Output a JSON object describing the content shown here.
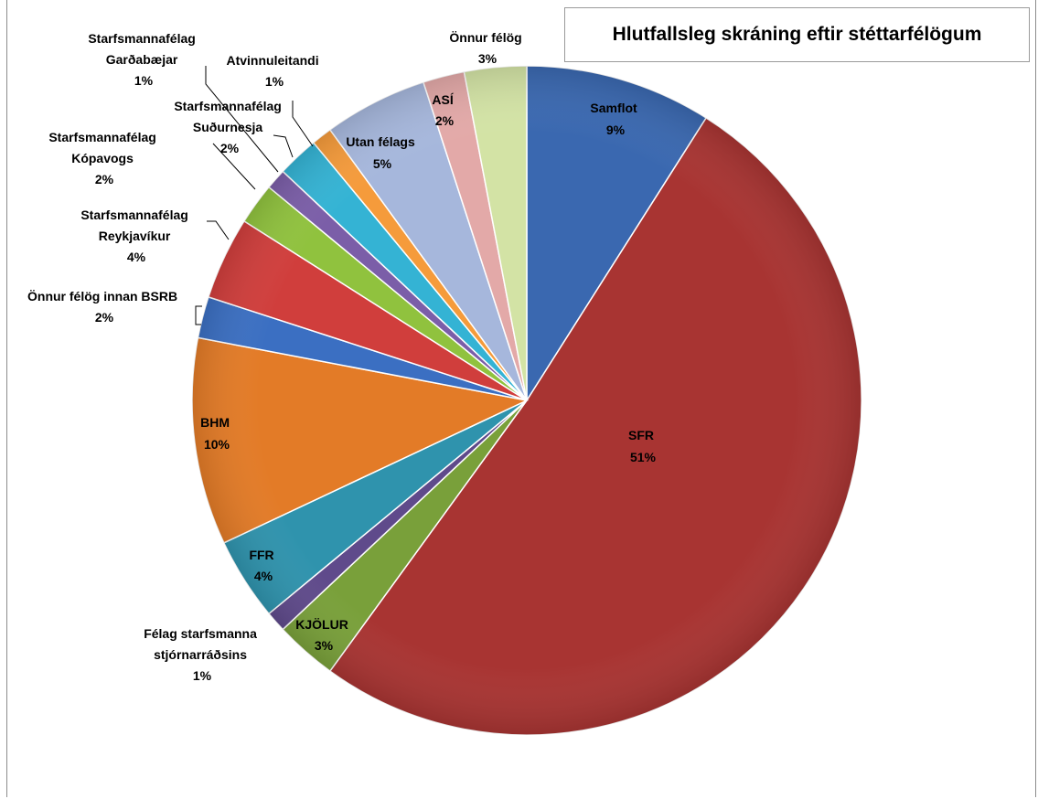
{
  "chart_data": {
    "type": "pie",
    "title": "Hlutfallsleg skráning eftir stéttarfélögum",
    "slices": [
      {
        "name": "Samflot",
        "value": 9,
        "label_value": "9%",
        "color": "#3a68b0"
      },
      {
        "name": "SFR",
        "value": 51,
        "label_value": "51%",
        "color": "#a83432"
      },
      {
        "name": "KJÖLUR",
        "value": 3,
        "label_value": "3%",
        "color": "#79a03a"
      },
      {
        "name": "Félag starfsmanna stjórnarráðsins",
        "value": 1,
        "label_value": "1%",
        "color": "#5f4a8b"
      },
      {
        "name": "FFR",
        "value": 4,
        "label_value": "4%",
        "color": "#2f93ad"
      },
      {
        "name": "BHM",
        "value": 10,
        "label_value": "10%",
        "color": "#e37b27"
      },
      {
        "name": "Önnur félög innan BSRB",
        "value": 2,
        "label_value": "2%",
        "color": "#3b6fc2"
      },
      {
        "name": "Starfsmannafélag Reykjavíkur",
        "value": 4,
        "label_value": "4%",
        "color": "#d03e3c"
      },
      {
        "name": "Starfsmannafélag Kópavogs",
        "value": 2,
        "label_value": "2%",
        "color": "#90c23e"
      },
      {
        "name": "Starfsmannafélag Garðabæjar",
        "value": 1,
        "label_value": "1%",
        "color": "#7b5ea8"
      },
      {
        "name": "Starfsmannafélag Suðurnesja",
        "value": 2,
        "label_value": "2%",
        "color": "#34b3d4"
      },
      {
        "name": "Atvinnuleitandi",
        "value": 1,
        "label_value": "1%",
        "color": "#f59b3b"
      },
      {
        "name": "Utan félags",
        "value": 5,
        "label_value": "5%",
        "color": "#a6b7dc"
      },
      {
        "name": "ASÍ",
        "value": 2,
        "label_value": "2%",
        "color": "#e3a9a8"
      },
      {
        "name": "Önnur félög",
        "value": 3,
        "label_value": "3%",
        "color": "#d3e3a5"
      }
    ]
  },
  "labels": {
    "samflot": {
      "name": "Samflot",
      "pct": "9%"
    },
    "sfr": {
      "name": "SFR",
      "pct": "51%"
    },
    "kjolur": {
      "name": "KJÖLUR",
      "pct": "3%"
    },
    "fss": {
      "line1": "Félag starfsmanna",
      "line2": "stjórnarráðsins",
      "pct": "1%"
    },
    "ffr": {
      "name": "FFR",
      "pct": "4%"
    },
    "bhm": {
      "name": "BHM",
      "pct": "10%"
    },
    "bsrb": {
      "name": "Önnur félög innan BSRB",
      "pct": "2%"
    },
    "reykjavik": {
      "line1": "Starfsmannafélag",
      "line2": "Reykjavíkur",
      "pct": "4%"
    },
    "kopavogs": {
      "line1": "Starfsmannafélag",
      "line2": "Kópavogs",
      "pct": "2%"
    },
    "gardabaer": {
      "line1": "Starfsmannafélag",
      "line2": "Garðabæjar",
      "pct": "1%"
    },
    "sudurnes": {
      "line1": "Starfsmannafélag",
      "line2": "Suðurnesja",
      "pct": "2%"
    },
    "atvinnu": {
      "name": "Atvinnuleitandi",
      "pct": "1%"
    },
    "utan": {
      "name": "Utan félags",
      "pct": "5%"
    },
    "asi": {
      "name": "ASÍ",
      "pct": "2%"
    },
    "onnur": {
      "name": "Önnur félög",
      "pct": "3%"
    }
  }
}
